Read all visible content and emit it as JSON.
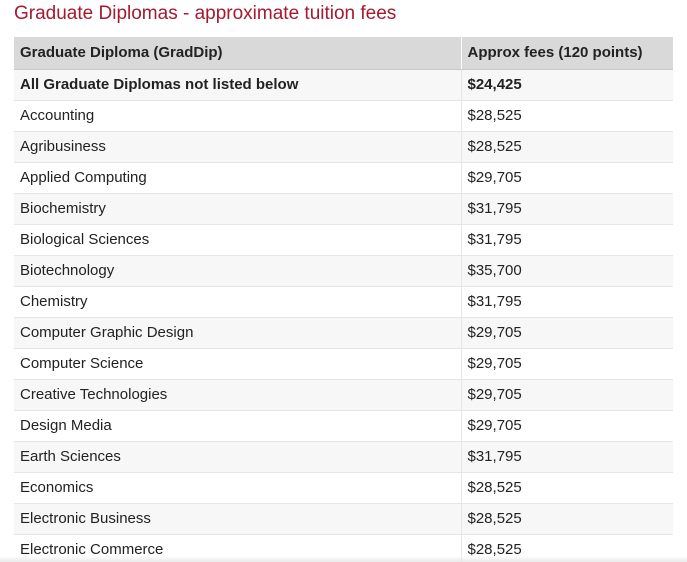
{
  "title": "Graduate Diplomas - approximate tuition fees",
  "table": {
    "headers": {
      "name": "Graduate Diploma (GradDip)",
      "fee": "Approx fees (120 points)"
    },
    "rows": [
      {
        "name": "All Graduate Diplomas not listed below",
        "fee": "$24,425"
      },
      {
        "name": "Accounting",
        "fee": "$28,525"
      },
      {
        "name": "Agribusiness",
        "fee": "$28,525"
      },
      {
        "name": "Applied Computing",
        "fee": "$29,705"
      },
      {
        "name": "Biochemistry",
        "fee": "$31,795"
      },
      {
        "name": "Biological Sciences",
        "fee": "$31,795"
      },
      {
        "name": "Biotechnology",
        "fee": "$35,700"
      },
      {
        "name": "Chemistry",
        "fee": "$31,795"
      },
      {
        "name": "Computer Graphic Design",
        "fee": "$29,705"
      },
      {
        "name": "Computer Science",
        "fee": "$29,705"
      },
      {
        "name": "Creative Technologies",
        "fee": "$29,705"
      },
      {
        "name": "Design Media",
        "fee": "$29,705"
      },
      {
        "name": "Earth Sciences",
        "fee": "$31,795"
      },
      {
        "name": "Economics",
        "fee": "$28,525"
      },
      {
        "name": "Electronic Business",
        "fee": "$28,525"
      },
      {
        "name": "Electronic Commerce",
        "fee": "$28,525"
      }
    ]
  },
  "colors": {
    "title": "#a6192e",
    "header_bg": "#d9d9d9",
    "stripe_bg": "#f7f7f7"
  }
}
